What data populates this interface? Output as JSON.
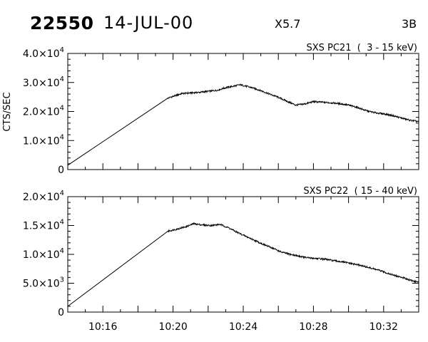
{
  "header": {
    "region": "22550",
    "date": "14-JUL-00",
    "xray_class": "X5.7",
    "optical_class": "3B"
  },
  "ylabel": "CTS/SEC",
  "chart_data": [
    {
      "type": "line",
      "legend": "SXS PC21  (  3 - 15 keV)",
      "ylabel": "CTS/SEC",
      "xlabel": "",
      "x_unit": "time of day (UT), minutes",
      "xlim": [
        "10:14",
        "10:34"
      ],
      "ylim": [
        0,
        40000
      ],
      "yticks": [
        {
          "value": 0,
          "label": "0",
          "exp": ""
        },
        {
          "value": 10000,
          "label": "1.0×10",
          "exp": "4"
        },
        {
          "value": 20000,
          "label": "2.0×10",
          "exp": "4"
        },
        {
          "value": 30000,
          "label": "3.0×10",
          "exp": "4"
        },
        {
          "value": 40000,
          "label": "4.0×10",
          "exp": "4"
        }
      ],
      "xticks": [],
      "points": [
        [
          "10:14:00",
          1500
        ],
        [
          "10:19:42",
          24600
        ],
        [
          "10:20:30",
          26200
        ],
        [
          "10:21:30",
          26600
        ],
        [
          "10:22:30",
          27300
        ],
        [
          "10:23:00",
          28200
        ],
        [
          "10:23:50",
          29200
        ],
        [
          "10:24:30",
          28200
        ],
        [
          "10:25:00",
          27200
        ],
        [
          "10:25:30",
          26000
        ],
        [
          "10:26:00",
          24900
        ],
        [
          "10:26:30",
          23500
        ],
        [
          "10:27:00",
          22200
        ],
        [
          "10:27:30",
          22600
        ],
        [
          "10:28:00",
          23400
        ],
        [
          "10:28:30",
          23200
        ],
        [
          "10:29:00",
          23000
        ],
        [
          "10:29:30",
          22700
        ],
        [
          "10:30:00",
          22200
        ],
        [
          "10:30:30",
          21400
        ],
        [
          "10:31:00",
          20300
        ],
        [
          "10:31:30",
          19600
        ],
        [
          "10:32:00",
          19200
        ],
        [
          "10:32:30",
          18600
        ],
        [
          "10:33:00",
          17800
        ],
        [
          "10:33:30",
          17000
        ],
        [
          "10:34:00",
          16500
        ]
      ]
    },
    {
      "type": "line",
      "legend": "SXS PC22  ( 15 - 40 keV)",
      "ylabel": "",
      "xlabel": "",
      "x_unit": "time of day (UT), minutes",
      "xlim": [
        "10:14",
        "10:34"
      ],
      "ylim": [
        0,
        20000
      ],
      "yticks": [
        {
          "value": 0,
          "label": "0",
          "exp": ""
        },
        {
          "value": 5000,
          "label": "5.0×10",
          "exp": "3"
        },
        {
          "value": 10000,
          "label": "1.0×10",
          "exp": "4"
        },
        {
          "value": 15000,
          "label": "1.5×10",
          "exp": "4"
        },
        {
          "value": 20000,
          "label": "2.0×10",
          "exp": "4"
        }
      ],
      "xticks": [
        "10:16",
        "10:20",
        "10:24",
        "10:28",
        "10:32"
      ],
      "points": [
        [
          "10:14:00",
          1000
        ],
        [
          "10:19:42",
          14000
        ],
        [
          "10:20:15",
          14400
        ],
        [
          "10:20:45",
          14800
        ],
        [
          "10:21:10",
          15300
        ],
        [
          "10:21:40",
          15100
        ],
        [
          "10:22:10",
          15000
        ],
        [
          "10:22:40",
          15200
        ],
        [
          "10:23:10",
          14600
        ],
        [
          "10:23:40",
          13800
        ],
        [
          "10:24:10",
          13100
        ],
        [
          "10:24:40",
          12400
        ],
        [
          "10:25:10",
          11700
        ],
        [
          "10:25:40",
          11100
        ],
        [
          "10:26:10",
          10400
        ],
        [
          "10:26:40",
          10000
        ],
        [
          "10:27:10",
          9700
        ],
        [
          "10:27:40",
          9400
        ],
        [
          "10:28:10",
          9300
        ],
        [
          "10:28:40",
          9150
        ],
        [
          "10:29:10",
          8900
        ],
        [
          "10:29:40",
          8700
        ],
        [
          "10:30:10",
          8400
        ],
        [
          "10:30:40",
          8100
        ],
        [
          "10:31:10",
          7700
        ],
        [
          "10:31:40",
          7300
        ],
        [
          "10:32:10",
          6800
        ],
        [
          "10:32:40",
          6300
        ],
        [
          "10:33:10",
          5900
        ],
        [
          "10:33:40",
          5400
        ],
        [
          "10:34:00",
          5200
        ]
      ]
    }
  ]
}
